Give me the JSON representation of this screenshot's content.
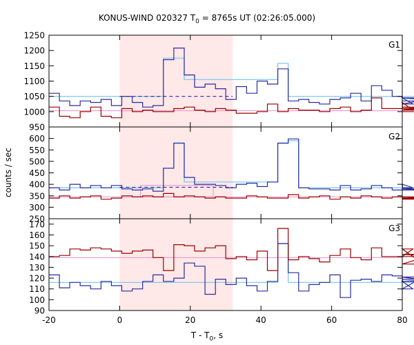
{
  "title": {
    "prefix": "KONUS-WIND 020327 T",
    "sub": "0",
    "suffix": " = 8765s UT (02:26:05.000)"
  },
  "xlabel": {
    "prefix": "T - T",
    "sub": "0",
    "suffix": ", s"
  },
  "ylabel": "counts / sec",
  "chart_data": {
    "type": "line",
    "title": "KONUS-WIND 020327 T0 = 8765s UT (02:26:05.000)",
    "xlabel": "T - T0, s",
    "ylabel": "counts / sec",
    "xlim": [
      -20,
      80
    ],
    "x_ticks": [
      -20,
      0,
      20,
      40,
      60,
      80
    ],
    "x_tick_labels": [
      "-20",
      "0",
      "20",
      "40",
      "60",
      "80"
    ],
    "highlight_interval": [
      0,
      32
    ],
    "highlight_color": "#ffe8e8",
    "bin_start": -20,
    "bin_width": 2.944,
    "colors": {
      "blue": "#2a2aa0",
      "cyan": "#6ec6ee",
      "red": "#990000",
      "pink": "#e890c8"
    },
    "panels": [
      {
        "label": "G1",
        "ylim": [
          950,
          1250
        ],
        "yticks": [
          950,
          1000,
          1050,
          1100,
          1150,
          1200,
          1250
        ],
        "series": [
          {
            "color": "blue",
            "values": [
              1060,
              1035,
              1020,
              1035,
              1030,
              1040,
              1020,
              1050,
              1030,
              1015,
              1020,
              1170,
              1208,
              1120,
              1080,
              1090,
              1075,
              1040,
              1082,
              1060,
              1100,
              1090,
              1140,
              1035,
              1040,
              1030,
              1025,
              1040,
              1045,
              1060,
              1035,
              1085,
              1070,
              1050,
              1045,
              1025,
              1025,
              1045,
              1035
            ]
          },
          {
            "color": "red",
            "values": [
              1015,
              985,
              980,
              1000,
              1015,
              985,
              980,
              1010,
              1000,
              1005,
              1000,
              1000,
              1010,
              1015,
              1005,
              1000,
              1010,
              1005,
              995,
              995,
              1000,
              1025,
              1000,
              1010,
              1005,
              1005,
              1000,
              1010,
              1015,
              1000,
              1005,
              1045,
              1010,
              1010,
              1030,
              1005,
              1015,
              1010,
              1000
            ]
          }
        ],
        "fit_lines": [
          {
            "color": "cyan",
            "type": "step",
            "values": [
              1050,
              1050,
              1050,
              1050,
              1050,
              1050,
              1050,
              1050,
              1050,
              1050,
              1050,
              1175,
              1175,
              1105,
              1105,
              1105,
              1105,
              1105,
              1105,
              1105,
              1105,
              1105,
              1158,
              1050,
              1050,
              1050,
              1050,
              1050,
              1050,
              1050,
              1050,
              1050,
              1050,
              1050,
              1050,
              1050,
              1050,
              1050,
              1050
            ]
          },
          {
            "color": "pink",
            "type": "flat",
            "value": 1003
          },
          {
            "color": "blue",
            "type": "dashed",
            "value": 1050,
            "x_range": [
              0,
              32
            ]
          }
        ]
      },
      {
        "label": "G2",
        "ylim": [
          250,
          650
        ],
        "yticks": [
          250,
          300,
          350,
          400,
          450,
          500,
          550,
          600
        ],
        "series": [
          {
            "color": "blue",
            "values": [
              385,
              375,
              400,
              385,
              395,
              385,
              395,
              380,
              375,
              380,
              370,
              470,
              580,
              430,
              400,
              400,
              395,
              385,
              400,
              405,
              390,
              410,
              580,
              598,
              385,
              380,
              380,
              375,
              395,
              375,
              380,
              395,
              385,
              375,
              400,
              385,
              375,
              380,
              380
            ]
          },
          {
            "color": "red",
            "values": [
              340,
              350,
              340,
              345,
              350,
              335,
              340,
              350,
              345,
              350,
              345,
              360,
              345,
              350,
              345,
              340,
              345,
              340,
              340,
              350,
              345,
              340,
              340,
              355,
              340,
              345,
              350,
              335,
              345,
              340,
              350,
              345,
              340,
              345,
              340,
              335,
              345,
              340,
              335
            ]
          }
        ],
        "fit_lines": [
          {
            "color": "cyan",
            "type": "step",
            "values": [
              385,
              385,
              385,
              385,
              385,
              385,
              385,
              385,
              385,
              385,
              385,
              470,
              578,
              410,
              410,
              410,
              410,
              410,
              410,
              410,
              410,
              410,
              578,
              590,
              385,
              385,
              385,
              385,
              385,
              385,
              385,
              385,
              385,
              385,
              385,
              385,
              385,
              385,
              385
            ]
          },
          {
            "color": "pink",
            "type": "flat",
            "value": 345
          },
          {
            "color": "pink",
            "type": "box",
            "value_range": [
              345,
              395
            ],
            "x_range": [
              5.9,
              26.5
            ]
          },
          {
            "color": "blue",
            "type": "dashed",
            "value": 387,
            "x_range": [
              0,
              32
            ]
          }
        ]
      },
      {
        "label": "G3",
        "ylim": [
          90,
          175
        ],
        "yticks": [
          90,
          100,
          110,
          120,
          130,
          140,
          150,
          160,
          170
        ],
        "series": [
          {
            "color": "blue",
            "values": [
              123,
              111,
              116,
              113,
              110,
              117,
              113,
              108,
              110,
              117,
              123,
              117,
              120,
              134,
              131,
              105,
              119,
              114,
              120,
              113,
              108,
              117,
              152,
              125,
              108,
              114,
              116,
              123,
              102,
              118,
              119,
              117,
              123,
              122,
              117,
              110,
              121,
              117,
              119
            ]
          },
          {
            "color": "red",
            "values": [
              140,
              141,
              147,
              146,
              148,
              147,
              145,
              143,
              145,
              146,
              139,
              127,
              151,
              150,
              145,
              148,
              150,
              138,
              140,
              137,
              145,
              127,
              166,
              137,
              140,
              138,
              135,
              141,
              147,
              139,
              137,
              148,
              140,
              140,
              140,
              147,
              133,
              142,
              140
            ]
          }
        ],
        "fit_lines": [
          {
            "color": "cyan",
            "type": "step",
            "values": [
              116,
              116,
              116,
              116,
              116,
              116,
              116,
              116,
              116,
              116,
              116,
              116,
              116,
              116,
              116,
              116,
              116,
              116,
              116,
              116,
              116,
              116,
              152,
              116,
              116,
              116,
              116,
              116,
              116,
              116,
              116,
              116,
              116,
              116,
              116,
              116,
              116,
              116,
              116
            ]
          },
          {
            "color": "pink",
            "type": "flat",
            "value": 139
          }
        ]
      }
    ]
  }
}
